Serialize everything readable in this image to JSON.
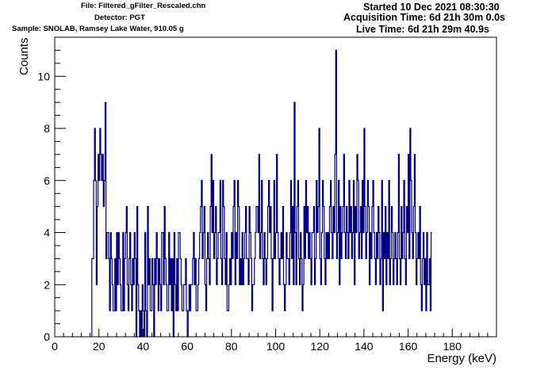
{
  "header": {
    "file": "File: Filtered_gFilter_Rescaled.chn",
    "detector": "Detector: PGT",
    "sample": "Sample: SNOLAB, Ramsey Lake Water, 910.05 g",
    "started": "Started 10 Dec 2021 08:30:30",
    "acquisition": "Acquisition Time: 6d 21h 30m 0.0s",
    "live": "Live Time: 6d 21h 29m 40.9s"
  },
  "colors": {
    "series": "#000080",
    "axis": "#000000"
  },
  "chart_data": {
    "type": "line",
    "style": "step-histogram",
    "xlabel": "Energy (keV)",
    "ylabel": "Counts",
    "xlim": [
      0,
      200
    ],
    "ylim": [
      0,
      11.5
    ],
    "x_ticks": [
      0,
      20,
      40,
      60,
      80,
      100,
      120,
      140,
      160,
      180
    ],
    "y_ticks": [
      0,
      2,
      4,
      6,
      8,
      10
    ],
    "bin_width_keV": 0.4,
    "x_start_keV": 16.8,
    "counts": [
      3,
      3,
      6,
      8,
      6,
      2,
      5,
      7,
      6,
      8,
      7,
      6,
      7,
      5,
      6,
      9,
      3,
      4,
      4,
      3,
      1,
      4,
      3,
      2,
      1,
      1,
      3,
      1,
      4,
      2,
      4,
      3,
      2,
      1,
      1,
      4,
      1,
      3,
      4,
      5,
      2,
      1,
      3,
      4,
      2,
      1,
      3,
      2,
      4,
      3,
      0,
      5,
      2,
      1,
      0,
      1,
      0,
      2,
      1,
      0,
      4,
      1,
      0,
      5,
      2,
      3,
      1,
      1,
      3,
      2,
      0,
      3,
      2,
      4,
      3,
      1,
      3,
      2,
      1,
      4,
      4,
      2,
      5,
      3,
      2,
      1,
      1,
      4,
      2,
      3,
      1,
      3,
      0,
      4,
      2,
      1,
      3,
      1,
      4,
      4,
      3,
      2,
      1,
      1,
      2,
      2,
      3,
      1,
      0,
      1,
      2,
      1,
      2,
      2,
      3,
      4,
      2,
      3,
      1,
      1,
      2,
      3,
      4,
      5,
      6,
      3,
      4,
      5,
      2,
      1,
      3,
      4,
      3,
      2,
      5,
      7,
      4,
      6,
      3,
      4,
      5,
      2,
      3,
      4,
      4,
      6,
      3,
      2,
      6,
      5,
      3,
      2,
      4,
      1,
      1,
      2,
      3,
      2,
      4,
      3,
      5,
      6,
      2,
      4,
      3,
      6,
      5,
      2,
      3,
      2,
      4,
      2,
      3,
      4,
      5,
      3,
      3,
      2,
      5,
      4,
      3,
      1,
      2,
      2,
      3,
      4,
      5,
      5,
      4,
      7,
      3,
      4,
      6,
      3,
      2,
      4,
      3,
      2,
      3,
      5,
      6,
      4,
      5,
      3,
      1,
      3,
      6,
      3,
      4,
      7,
      4,
      3,
      2,
      3,
      4,
      3,
      5,
      2,
      1,
      2,
      4,
      3,
      3,
      2,
      4,
      6,
      3,
      5,
      2,
      9,
      4,
      2,
      5,
      6,
      3,
      2,
      4,
      3,
      1,
      2,
      5,
      3,
      6,
      4,
      5,
      3,
      4,
      3,
      2,
      4,
      4,
      5,
      2,
      3,
      6,
      4,
      5,
      8,
      3,
      2,
      4,
      6,
      5,
      3,
      2,
      4,
      3,
      4,
      3,
      5,
      6,
      4,
      3,
      5,
      4,
      7,
      11,
      3,
      4,
      6,
      2,
      5,
      3,
      4,
      5,
      7,
      4,
      3,
      5,
      4,
      3,
      6,
      4,
      5,
      3,
      4,
      6,
      2,
      5,
      4,
      7,
      6,
      3,
      4,
      5,
      3,
      6,
      4,
      8,
      5,
      3,
      4,
      6,
      5,
      2,
      4,
      3,
      5,
      6,
      4,
      3,
      2,
      4,
      3,
      5,
      4,
      2,
      3,
      6,
      1,
      4,
      3,
      5,
      2,
      4,
      3,
      6,
      2,
      3,
      5,
      4,
      2,
      3,
      4,
      3,
      2,
      4,
      7,
      3,
      2,
      5,
      3,
      4,
      6,
      3,
      2,
      5,
      4,
      7,
      3,
      8,
      6,
      4,
      3,
      5,
      7,
      4,
      2,
      3,
      4,
      3,
      5,
      2,
      1,
      3,
      4,
      2,
      3,
      1,
      4,
      2,
      2,
      3,
      1,
      4
    ]
  }
}
